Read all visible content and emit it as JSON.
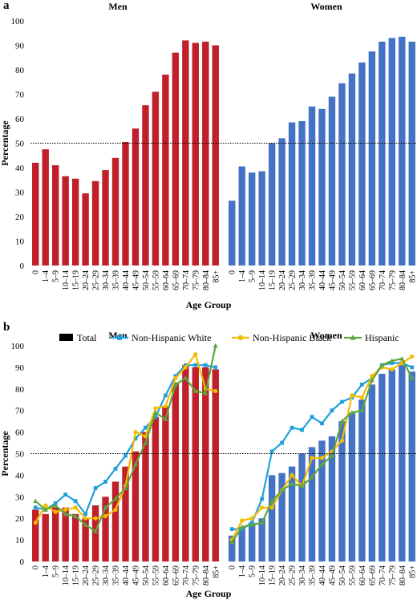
{
  "chart_data": [
    {
      "panel": "a",
      "type": "bar",
      "ylabel": "Percentage",
      "xlabel": "Age Group",
      "ylim": [
        0,
        100
      ],
      "yticks": [
        0,
        10,
        20,
        30,
        40,
        50,
        60,
        70,
        80,
        90,
        100
      ],
      "reference_line": 50,
      "categories": [
        "0",
        "1–4",
        "5–9",
        "10–14",
        "15–19",
        "20–24",
        "25–29",
        "30–34",
        "35–39",
        "40–44",
        "45–49",
        "50–54",
        "55–59",
        "60–64",
        "65–69",
        "70–74",
        "75–79",
        "80–84",
        "85+"
      ],
      "groups": [
        {
          "title": "Men",
          "color": "#c0202a",
          "values": [
            42,
            47.5,
            41,
            36.5,
            35.5,
            29.5,
            34.5,
            39,
            44,
            50.5,
            56,
            65.5,
            71,
            78,
            87,
            92,
            91,
            91.5,
            90
          ]
        },
        {
          "title": "Women",
          "color": "#4472c4",
          "values": [
            26.5,
            40.5,
            38,
            38.5,
            50,
            52,
            58.5,
            59,
            65,
            64,
            69,
            74.5,
            78.5,
            83,
            87.5,
            91.5,
            93,
            93.5,
            91.5
          ]
        }
      ]
    },
    {
      "panel": "b",
      "type": "bar",
      "ylabel": "Percentage",
      "xlabel": "Age Group",
      "ylim": [
        0,
        100
      ],
      "yticks": [
        0,
        10,
        20,
        30,
        40,
        50,
        60,
        70,
        80,
        90,
        100
      ],
      "reference_line": 50,
      "categories": [
        "0",
        "1–4",
        "5–9",
        "10–14",
        "15–19",
        "20–24",
        "25–29",
        "30–34",
        "35–39",
        "40–44",
        "45–49",
        "50–54",
        "55–59",
        "60–64",
        "65–69",
        "70–74",
        "75–79",
        "80–84",
        "85+"
      ],
      "legend": [
        {
          "name": "Total",
          "color": "#000000",
          "kind": "bar"
        },
        {
          "name": "Non-Hispanic White",
          "color": "#1fa0dc",
          "kind": "line-square"
        },
        {
          "name": "Non-Hispanic Black",
          "color": "#f5bb00",
          "kind": "line-circle"
        },
        {
          "name": "Hispanic",
          "color": "#5ea63e",
          "kind": "line-triangle"
        }
      ],
      "groups": [
        {
          "title": "Men",
          "bar_color": "#c0202a",
          "total": [
            24,
            22,
            25,
            25,
            22,
            20,
            26,
            30,
            37,
            44,
            51,
            60,
            67,
            72,
            83,
            91,
            90,
            90,
            89
          ],
          "series": {
            "Non-Hispanic White": [
              25,
              24,
              27,
              31,
              28,
              22,
              34,
              37,
              43,
              49,
              57,
              62,
              67,
              77,
              86,
              91,
              91,
              91,
              90
            ],
            "Non-Hispanic Black": [
              18,
              26,
              23,
              24,
              25,
              20,
              20,
              21,
              24,
              35,
              60,
              58,
              71,
              72,
              85,
              90,
              96,
              80,
              79
            ],
            "Hispanic": [
              28,
              24,
              26,
              22,
              21,
              17,
              14,
              25,
              29,
              34,
              45,
              55,
              69,
              66,
              82,
              85,
              79,
              78,
              100
            ]
          }
        },
        {
          "title": "Women",
          "bar_color": "#4472c4",
          "total": [
            12,
            16,
            18,
            20,
            40,
            41,
            44,
            50,
            53,
            56,
            58,
            65,
            69,
            75,
            82,
            87,
            89,
            91,
            88
          ],
          "series": {
            "Non-Hispanic White": [
              15,
              15,
              18,
              29,
              51,
              55,
              62,
              61,
              67,
              64,
              70,
              74,
              76,
              82,
              85,
              91,
              92,
              92,
              90
            ],
            "Non-Hispanic Black": [
              10,
              19,
              20,
              25,
              25,
              33,
              40,
              35,
              48,
              48,
              51,
              56,
              77,
              76,
              86,
              90,
              89,
              92,
              95
            ],
            "Hispanic": [
              9,
              16,
              17,
              18,
              28,
              33,
              36,
              35,
              39,
              45,
              49,
              65,
              69,
              70,
              84,
              91,
              93,
              94,
              85
            ]
          }
        }
      ]
    }
  ]
}
